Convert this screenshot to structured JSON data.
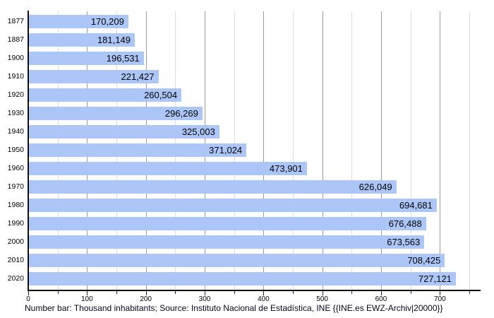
{
  "caption": "Number bar: Thousand inhabitants; Source: Instituto Nacional de Estadística, INE {{INE.es EWZ-Archiv|20000}}",
  "chart_data": {
    "type": "bar",
    "orientation": "horizontal",
    "title": "",
    "xlabel": "",
    "ylabel": "",
    "categories": [
      "1877",
      "1887",
      "1900",
      "1910",
      "1920",
      "1930",
      "1940",
      "1950",
      "1960",
      "1970",
      "1980",
      "1990",
      "2000",
      "2010",
      "2020"
    ],
    "values": [
      170209,
      181149,
      196531,
      221427,
      260504,
      296269,
      325003,
      371024,
      473901,
      626049,
      694681,
      676488,
      673563,
      708425,
      727121
    ],
    "value_labels": [
      "170,209",
      "181,149",
      "196,531",
      "221,427",
      "260,504",
      "296,269",
      "325,003",
      "371,024",
      "473,901",
      "626,049",
      "694,681",
      "676,488",
      "673,563",
      "708,425",
      "727,121"
    ],
    "unit": "thousand inhabitants",
    "x_ticks": [
      0,
      100,
      200,
      300,
      400,
      500,
      600,
      700
    ],
    "x_tick_labels": [
      "0",
      "100",
      "200",
      "300",
      "400",
      "500",
      "600",
      "700"
    ],
    "x_minor_step": 50,
    "xlim": [
      0,
      750
    ],
    "grid": true,
    "legend": false,
    "bar_color": "#adc6f8",
    "gridline_minor_color": "#dcdcdc",
    "gridline_major_color": "#9a9a9a",
    "axis_color": "#111111",
    "label_color": "#000000",
    "caption_color": "#05051e"
  }
}
